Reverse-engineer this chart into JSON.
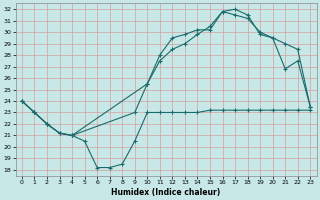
{
  "xlabel": "Humidex (Indice chaleur)",
  "bg_color": "#c8e8e8",
  "grid_color": "#d4a0a0",
  "line_color": "#1a6b6b",
  "xlim": [
    -0.5,
    23.5
  ],
  "ylim": [
    17.5,
    32.5
  ],
  "xticks": [
    0,
    1,
    2,
    3,
    4,
    5,
    6,
    7,
    8,
    9,
    10,
    11,
    12,
    13,
    14,
    15,
    16,
    17,
    18,
    19,
    20,
    21,
    22,
    23
  ],
  "yticks": [
    18,
    19,
    20,
    21,
    22,
    23,
    24,
    25,
    26,
    27,
    28,
    29,
    30,
    31,
    32
  ],
  "curve1_x": [
    0,
    1,
    2,
    3,
    4,
    5,
    6,
    7,
    8,
    9,
    10,
    11,
    12,
    13,
    14,
    15,
    16,
    17,
    18,
    19,
    20,
    21,
    22,
    23
  ],
  "curve1_y": [
    24.0,
    23.0,
    22.0,
    21.2,
    21.0,
    20.5,
    18.2,
    18.2,
    18.5,
    20.5,
    23.0,
    23.0,
    23.0,
    23.0,
    23.0,
    23.2,
    23.2,
    23.2,
    23.2,
    23.2,
    23.2,
    23.2,
    23.2,
    23.2
  ],
  "curve2_x": [
    0,
    1,
    2,
    3,
    4,
    9,
    10,
    11,
    12,
    13,
    14,
    15,
    16,
    17,
    18,
    19,
    20,
    21,
    22,
    23
  ],
  "curve2_y": [
    24.0,
    23.0,
    22.0,
    21.2,
    21.0,
    23.0,
    25.5,
    27.5,
    28.5,
    29.0,
    29.8,
    30.5,
    31.8,
    31.5,
    31.2,
    30.0,
    29.5,
    29.0,
    28.5,
    23.5
  ],
  "curve3_x": [
    0,
    1,
    2,
    3,
    4,
    10,
    11,
    12,
    13,
    14,
    15,
    16,
    17,
    18,
    19,
    20,
    21,
    22,
    23
  ],
  "curve3_y": [
    24.0,
    23.0,
    22.0,
    21.2,
    21.0,
    25.5,
    28.0,
    29.5,
    29.8,
    30.2,
    30.2,
    31.8,
    32.0,
    31.5,
    29.8,
    29.5,
    26.8,
    27.5,
    23.5
  ]
}
